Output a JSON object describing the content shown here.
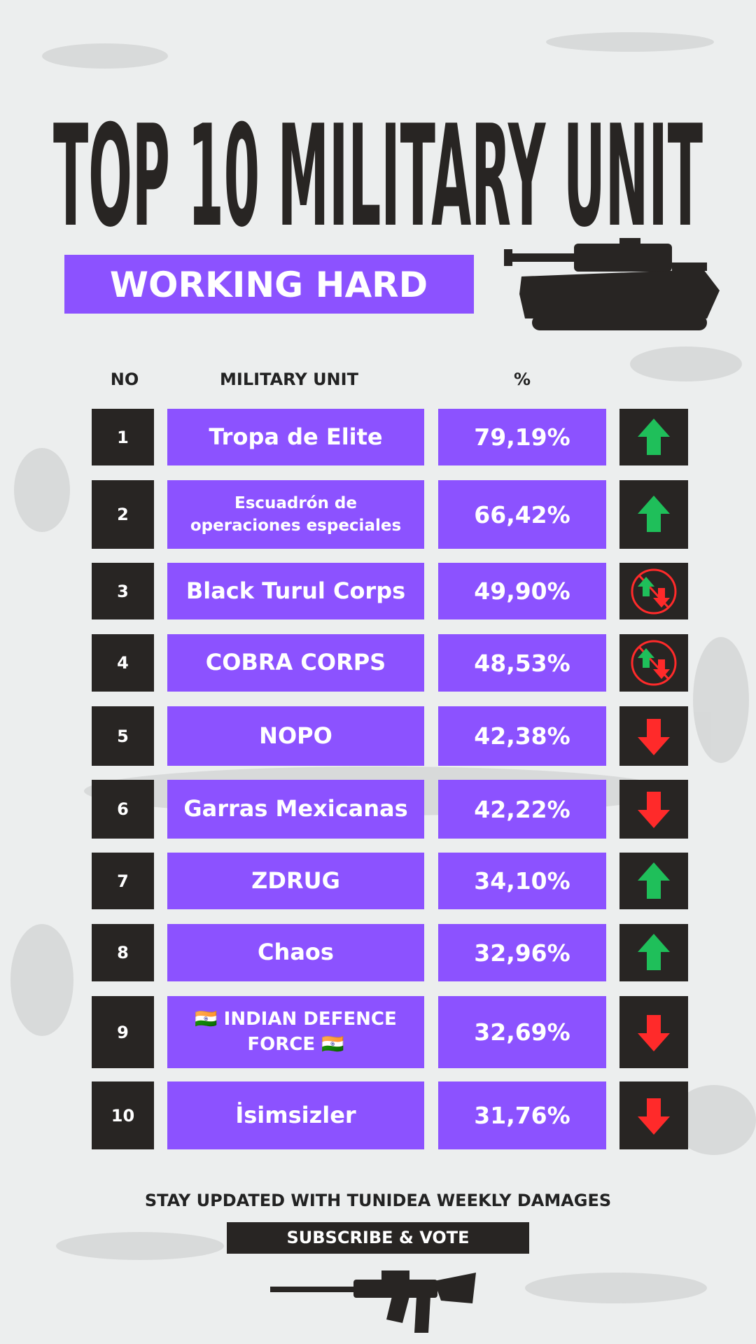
{
  "header": {
    "title": "TOP 10 MILITARY UNIT",
    "subtitle": "WORKING HARD"
  },
  "table": {
    "columns": [
      "NO",
      "MILITARY UNIT",
      "%"
    ],
    "rows": [
      [
        "1",
        "Tropa de Elite",
        "79,19%"
      ],
      [
        "2",
        "Escuadrón de operaciones especiales",
        "66,42%"
      ],
      [
        "3",
        "Black Turul Corps",
        "49,90%"
      ],
      [
        "4",
        "COBRA CORPS",
        "48,53%"
      ],
      [
        "5",
        "NOPO",
        "42,38%"
      ],
      [
        "6",
        "Garras Mexicanas",
        "42,22%"
      ],
      [
        "7",
        "ZDRUG",
        "34,10%"
      ],
      [
        "8",
        "Chaos",
        "32,96%"
      ],
      [
        "9",
        "🇮🇳 INDIAN DEFENCE FORCE 🇮🇳",
        "32,69%"
      ],
      [
        "10",
        "İsimsizler",
        "31,76%"
      ]
    ]
  },
  "footer": {
    "text": "STAY UPDATED WITH TUNIDEA WEEKLY DAMAGES",
    "button": "SUBSCRIBE & VOTE"
  }
}
